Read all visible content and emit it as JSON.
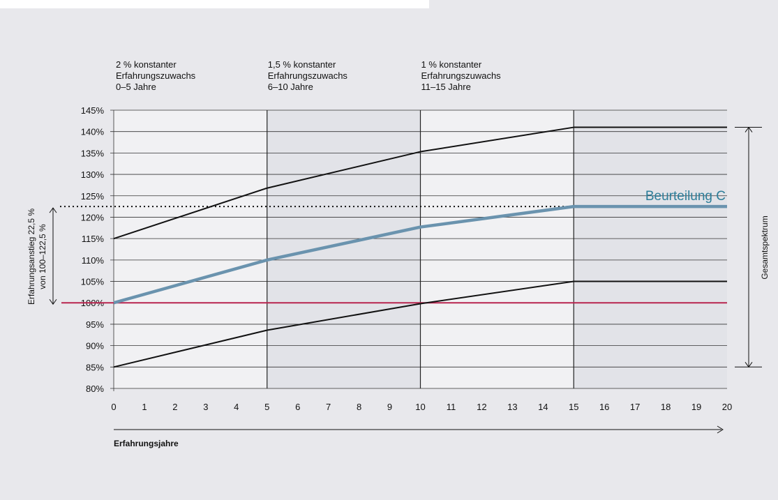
{
  "chart_data": {
    "type": "line",
    "x": [
      0,
      5,
      10,
      15,
      20
    ],
    "series": [
      {
        "values": [
          115,
          126.8,
          135.3,
          141,
          141
        ],
        "color": "#111111"
      },
      {
        "name": "Beurteilung C",
        "values": [
          100,
          110,
          117.7,
          122.5,
          122.5
        ],
        "color": "#6a93ae"
      },
      {
        "values": [
          85,
          93.6,
          99.8,
          105,
          105
        ],
        "color": "#111111"
      }
    ],
    "reference_line": {
      "y": 100,
      "color": "#b8244e"
    },
    "dotted_line": {
      "y": 122.5,
      "x_to": 15
    },
    "xlim": [
      0,
      20
    ],
    "ylim": [
      80,
      145
    ],
    "x_ticks": [
      "0",
      "1",
      "2",
      "3",
      "4",
      "5",
      "6",
      "7",
      "8",
      "9",
      "10",
      "11",
      "12",
      "13",
      "14",
      "15",
      "16",
      "17",
      "18",
      "19",
      "20"
    ],
    "y_ticks": [
      "80%",
      "85%",
      "90%",
      "95%",
      "100%",
      "105%",
      "110%",
      "115%",
      "120%",
      "125%",
      "130%",
      "135%",
      "140%",
      "145%"
    ],
    "xlabel": "Erfahrungsjahre",
    "period_headers": [
      [
        "2 % konstanter",
        "Erfahrungszuwachs",
        "0–5 Jahre"
      ],
      [
        "1,5 % konstanter",
        "Erfahrungszuwachs",
        "6–10 Jahre"
      ],
      [
        "1 % konstanter",
        "Erfahrungszuwachs",
        "11–15 Jahre"
      ]
    ],
    "series_label": "Beurteilung C",
    "left_annotation": [
      "Erfahrungsanstieg 22,5 %",
      "von 100–122,5 %"
    ],
    "right_annotation": "Gesamtspektrum",
    "colors": {
      "panel": "#e8e8ec",
      "band_light": "#f1f1f3",
      "band_dark": "#e2e3e8",
      "label_teal": "#2c7d99"
    }
  }
}
